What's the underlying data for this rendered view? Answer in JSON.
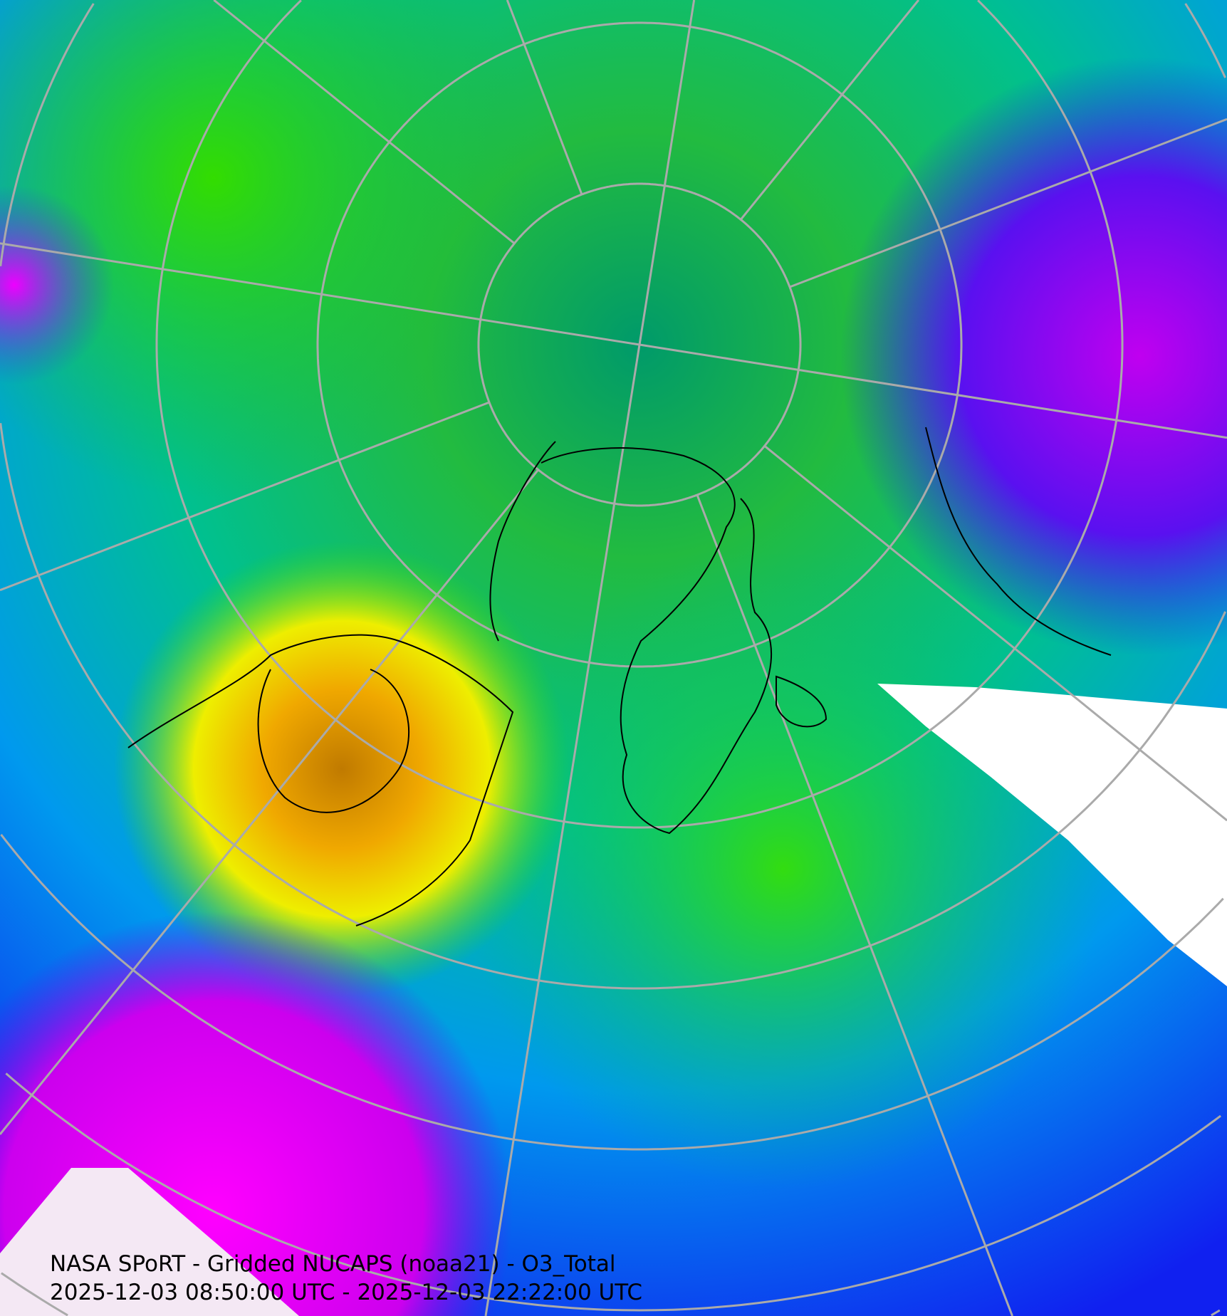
{
  "map": {
    "projection": "north-polar-stereographic",
    "product": "O3_Total",
    "colors": {
      "low": "#0000ff",
      "mid_low": "#00e5ee",
      "mid": "#00a070",
      "mid_high": "#33ee00",
      "high": "#ffee00",
      "higher": "#f0a000",
      "highest": "#703000",
      "very_low": "#ff00ff",
      "no_data": "#ffffff",
      "grid": "#aaaaaa",
      "coastline": "#000000"
    }
  },
  "caption": {
    "title": "NASA SPoRT - Gridded NUCAPS (noaa21) - O3_Total",
    "time_range": "2025-12-03 08:50:00 UTC - 2025-12-03 22:22:00 UTC"
  }
}
